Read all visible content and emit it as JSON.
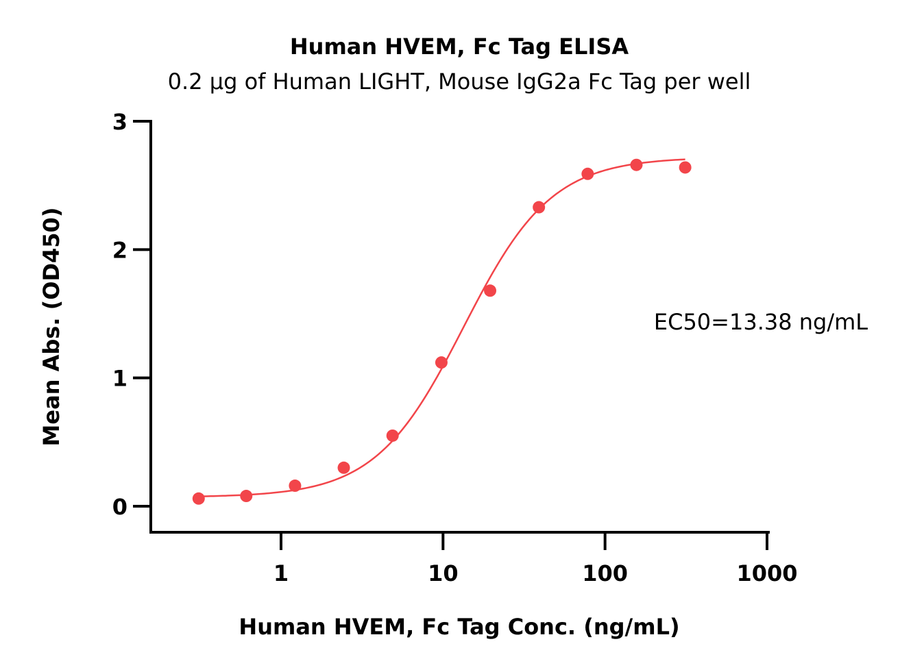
{
  "chart_data": {
    "type": "scatter",
    "title": "Human HVEM, Fc Tag ELISA",
    "subtitle": "0.2 μg of Human LIGHT, Mouse IgG2a Fc Tag per well",
    "xlabel": "Human HVEM, Fc Tag Conc. (ng/mL)",
    "ylabel": "Mean Abs. (OD450)",
    "xscale": "log",
    "xlim": [
      0.15,
      1000
    ],
    "ylim": [
      -0.2,
      3
    ],
    "x_ticks": [
      {
        "value": 1,
        "label": "1"
      },
      {
        "value": 10,
        "label": "10"
      },
      {
        "value": 100,
        "label": "100"
      },
      {
        "value": 1000,
        "label": "1000"
      }
    ],
    "y_ticks": [
      {
        "value": 0,
        "label": "0"
      },
      {
        "value": 1,
        "label": "1"
      },
      {
        "value": 2,
        "label": "2"
      },
      {
        "value": 3,
        "label": "3"
      }
    ],
    "grid": false,
    "series": [
      {
        "color": "#f2454a",
        "x": [
          0.31,
          0.61,
          1.22,
          2.44,
          4.88,
          9.77,
          19.53,
          39.06,
          78.13,
          156.25,
          312.5
        ],
        "y": [
          0.06,
          0.08,
          0.16,
          0.3,
          0.55,
          1.12,
          1.68,
          2.33,
          2.59,
          2.66,
          2.64
        ]
      }
    ],
    "fit": {
      "model": "4PL",
      "bottom": 0.07,
      "top": 2.72,
      "ec50": 13.38,
      "hill": 1.6,
      "x_range": [
        0.31,
        312.5
      ]
    },
    "annotation": "EC50=13.38 ng/mL"
  }
}
